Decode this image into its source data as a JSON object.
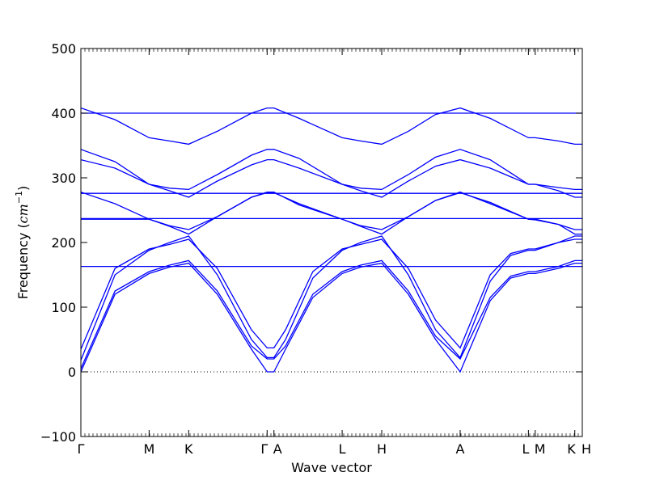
{
  "chart_data": {
    "type": "line",
    "title": "",
    "xlabel": "Wave vector",
    "ylabel": "Frequency (cm⁻¹)",
    "ylabel_prefix": "Frequency (",
    "ylabel_unit": "cm",
    "ylabel_exp": "−1",
    "ylabel_suffix": ")",
    "ylim": [
      -100,
      500
    ],
    "yticks": [
      -100,
      0,
      100,
      200,
      300,
      400,
      500
    ],
    "xlim": [
      0,
      7.35
    ],
    "grid": false,
    "zero_line": "dotted",
    "color": "#0000ff",
    "high_symmetry_points": [
      {
        "label": "Γ",
        "x": 0.0
      },
      {
        "label": "M",
        "x": 1.0
      },
      {
        "label": "K",
        "x": 1.58
      },
      {
        "label": "Γ",
        "x": 2.73
      },
      {
        "label": "A",
        "x": 2.83
      },
      {
        "label": "L",
        "x": 3.83
      },
      {
        "label": "H",
        "x": 4.41
      },
      {
        "label": "A",
        "x": 5.56
      },
      {
        "label": "L",
        "x": 6.56
      },
      {
        "label": "M",
        "x": 6.66
      },
      {
        "label": "K",
        "x": 7.24
      },
      {
        "label": "H",
        "x": 7.35
      }
    ],
    "series": [
      {
        "x": [
          0.0,
          0.5,
          1.0,
          1.3,
          1.58,
          2.0,
          2.5,
          2.73,
          2.83,
          3.0,
          3.4,
          3.83,
          4.1,
          4.41,
          4.8,
          5.2,
          5.56,
          6.0,
          6.3,
          6.56,
          6.66,
          7.0,
          7.24,
          7.35
        ],
        "y": [
          0,
          120,
          152,
          162,
          168,
          120,
          35,
          0,
          0,
          35,
          115,
          152,
          162,
          168,
          120,
          50,
          0,
          110,
          145,
          152,
          152,
          160,
          168,
          168
        ]
      },
      {
        "x": [
          0.0,
          0.5,
          1.0,
          1.3,
          1.58,
          2.0,
          2.5,
          2.73,
          2.83,
          3.0,
          3.4,
          3.83,
          4.1,
          4.41,
          4.8,
          5.2,
          5.56,
          6.0,
          6.3,
          6.56,
          6.66,
          7.0,
          7.24,
          7.35
        ],
        "y": [
          5,
          125,
          155,
          165,
          172,
          125,
          40,
          20,
          20,
          40,
          120,
          155,
          165,
          172,
          125,
          55,
          20,
          115,
          148,
          155,
          155,
          163,
          172,
          172
        ]
      },
      {
        "x": [
          0.0,
          0.5,
          1.0,
          1.3,
          1.58,
          2.0,
          2.5,
          2.73,
          2.83,
          3.0,
          3.4,
          3.83,
          4.1,
          4.41,
          4.8,
          5.2,
          5.56,
          6.0,
          6.3,
          6.56,
          6.66,
          7.0,
          7.24,
          7.35
        ],
        "y": [
          18,
          150,
          188,
          200,
          210,
          150,
          50,
          22,
          22,
          50,
          145,
          188,
          200,
          210,
          150,
          65,
          22,
          140,
          180,
          188,
          188,
          200,
          210,
          210
        ]
      },
      {
        "x": [
          0.0,
          0.5,
          1.0,
          1.3,
          1.58,
          2.0,
          2.5,
          2.73,
          2.83,
          3.0,
          3.4,
          3.83,
          4.1,
          4.41,
          4.8,
          5.2,
          5.56,
          6.0,
          6.3,
          6.56,
          6.66,
          7.0,
          7.24,
          7.35
        ],
        "y": [
          35,
          160,
          190,
          197,
          205,
          160,
          65,
          37,
          37,
          65,
          155,
          190,
          197,
          205,
          160,
          80,
          37,
          150,
          183,
          190,
          190,
          200,
          205,
          205
        ]
      },
      {
        "x": [
          0.0,
          1.0,
          2.0,
          2.73,
          2.83,
          4.0,
          5.0,
          5.56,
          6.56,
          6.66,
          7.35
        ],
        "y": [
          163,
          163,
          163,
          163,
          163,
          163,
          163,
          163,
          163,
          163,
          163
        ]
      },
      {
        "x": [
          0.0,
          0.5,
          1.0,
          1.3,
          1.58,
          2.0,
          2.5,
          2.73,
          2.83,
          3.2,
          3.83,
          4.1,
          4.41,
          4.8,
          5.2,
          5.56,
          6.0,
          6.56,
          6.66,
          7.0,
          7.24,
          7.35
        ],
        "y": [
          236,
          236,
          236,
          226,
          220,
          240,
          270,
          277,
          277,
          260,
          236,
          226,
          220,
          240,
          265,
          277,
          262,
          236,
          235,
          228,
          220,
          220
        ]
      },
      {
        "x": [
          0.0,
          0.5,
          1.0,
          1.58,
          2.0,
          2.73,
          2.83,
          3.83,
          4.41,
          5.0,
          5.56,
          6.56,
          6.66,
          7.35
        ],
        "y": [
          237,
          237,
          237,
          237,
          237,
          237,
          237,
          237,
          237,
          237,
          237,
          237,
          237,
          237
        ]
      },
      {
        "x": [
          0.0,
          0.5,
          1.0,
          1.3,
          1.58,
          2.0,
          2.5,
          2.73,
          2.83,
          3.2,
          3.83,
          4.1,
          4.41,
          4.8,
          5.2,
          5.56,
          6.0,
          6.56,
          6.66,
          7.0,
          7.24,
          7.35
        ],
        "y": [
          278,
          260,
          236,
          225,
          213,
          240,
          270,
          278,
          278,
          258,
          236,
          225,
          213,
          240,
          265,
          278,
          260,
          236,
          236,
          228,
          213,
          213
        ]
      },
      {
        "x": [
          0.0,
          1.0,
          2.0,
          2.73,
          2.83,
          3.83,
          4.41,
          5.56,
          6.56,
          6.66,
          7.35
        ],
        "y": [
          276,
          276,
          276,
          276,
          276,
          276,
          276,
          276,
          276,
          276,
          276
        ]
      },
      {
        "x": [
          0.0,
          0.5,
          1.0,
          1.3,
          1.58,
          2.0,
          2.5,
          2.73,
          2.83,
          3.2,
          3.83,
          4.1,
          4.41,
          4.8,
          5.2,
          5.56,
          6.0,
          6.56,
          6.66,
          7.0,
          7.24,
          7.35
        ],
        "y": [
          328,
          315,
          290,
          280,
          270,
          295,
          320,
          328,
          328,
          315,
          290,
          280,
          270,
          295,
          318,
          328,
          315,
          290,
          290,
          280,
          270,
          270
        ]
      },
      {
        "x": [
          0.0,
          0.5,
          1.0,
          1.3,
          1.58,
          2.0,
          2.5,
          2.73,
          2.83,
          3.2,
          3.83,
          4.1,
          4.41,
          4.8,
          5.2,
          5.56,
          6.0,
          6.56,
          6.66,
          7.0,
          7.24,
          7.35
        ],
        "y": [
          344,
          325,
          290,
          284,
          282,
          305,
          335,
          344,
          344,
          330,
          290,
          284,
          282,
          305,
          332,
          344,
          328,
          290,
          290,
          285,
          282,
          282
        ]
      },
      {
        "x": [
          0.0,
          0.5,
          1.0,
          1.58,
          2.0,
          2.73,
          2.83,
          3.83,
          4.41,
          5.0,
          5.56,
          6.56,
          6.66,
          7.35
        ],
        "y": [
          400,
          400,
          400,
          400,
          400,
          400,
          400,
          400,
          400,
          400,
          400,
          400,
          400,
          400
        ]
      },
      {
        "x": [
          0.0,
          0.5,
          1.0,
          1.3,
          1.58,
          2.0,
          2.5,
          2.73,
          2.83,
          3.2,
          3.83,
          4.1,
          4.41,
          4.8,
          5.2,
          5.56,
          6.0,
          6.56,
          6.66,
          7.0,
          7.24,
          7.35
        ],
        "y": [
          408,
          390,
          362,
          357,
          352,
          372,
          400,
          408,
          408,
          392,
          362,
          357,
          352,
          372,
          398,
          408,
          392,
          362,
          362,
          357,
          352,
          352
        ]
      }
    ]
  }
}
